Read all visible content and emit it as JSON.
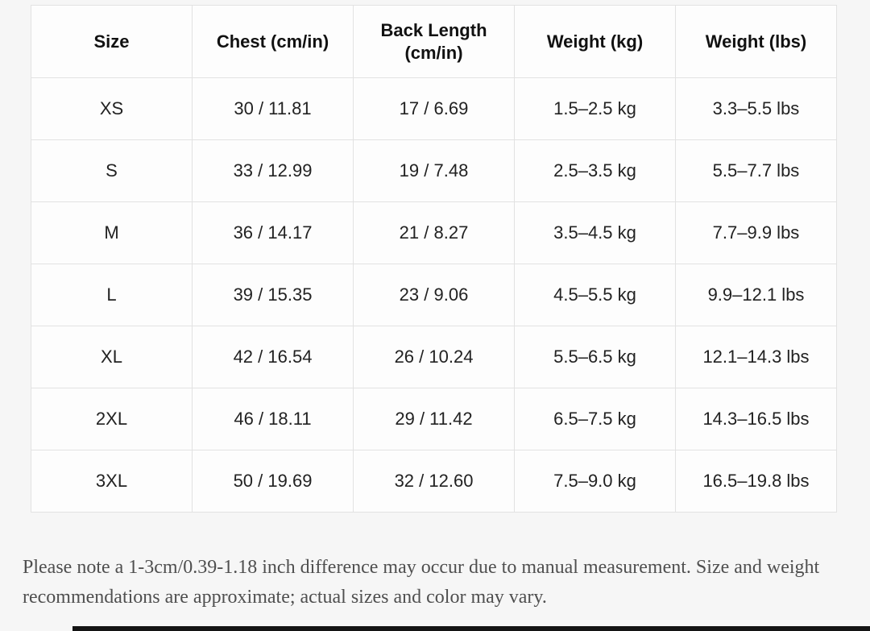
{
  "table": {
    "columns": [
      "Size",
      "Chest (cm/in)",
      "Back Length (cm/in)",
      "Weight (kg)",
      "Weight (lbs)"
    ],
    "column_keys": [
      "size",
      "chest",
      "back-length",
      "weight-kg",
      "weight-lbs"
    ],
    "rows": [
      [
        "XS",
        "30 / 11.81",
        "17 / 6.69",
        "1.5–2.5 kg",
        "3.3–5.5 lbs"
      ],
      [
        "S",
        "33 / 12.99",
        "19 / 7.48",
        "2.5–3.5 kg",
        "5.5–7.7 lbs"
      ],
      [
        "M",
        "36 / 14.17",
        "21 / 8.27",
        "3.5–4.5 kg",
        "7.7–9.9 lbs"
      ],
      [
        "L",
        "39 / 15.35",
        "23 / 9.06",
        "4.5–5.5 kg",
        "9.9–12.1 lbs"
      ],
      [
        "XL",
        "42 / 16.54",
        "26 / 10.24",
        "5.5–6.5 kg",
        "12.1–14.3 lbs"
      ],
      [
        "2XL",
        "46 / 18.11",
        "29 / 11.42",
        "6.5–7.5 kg",
        "14.3–16.5 lbs"
      ],
      [
        "3XL",
        "50 / 19.69",
        "32 / 12.60",
        "7.5–9.0 kg",
        "16.5–19.8 lbs"
      ]
    ]
  },
  "note": {
    "text": "Please note a 1-3cm/0.39-1.18 inch difference may occur due to manual measurement. Size and weight recommendations are approximate; actual sizes and color may vary."
  },
  "colors": {
    "page_background": "#f6f6f6",
    "cell_background": "#fdfdfd",
    "table_border": "#e2e2e2",
    "header_text": "#111111",
    "cell_text": "#222222",
    "note_text": "#4f4f4f",
    "bottom_bar": "#141414"
  }
}
